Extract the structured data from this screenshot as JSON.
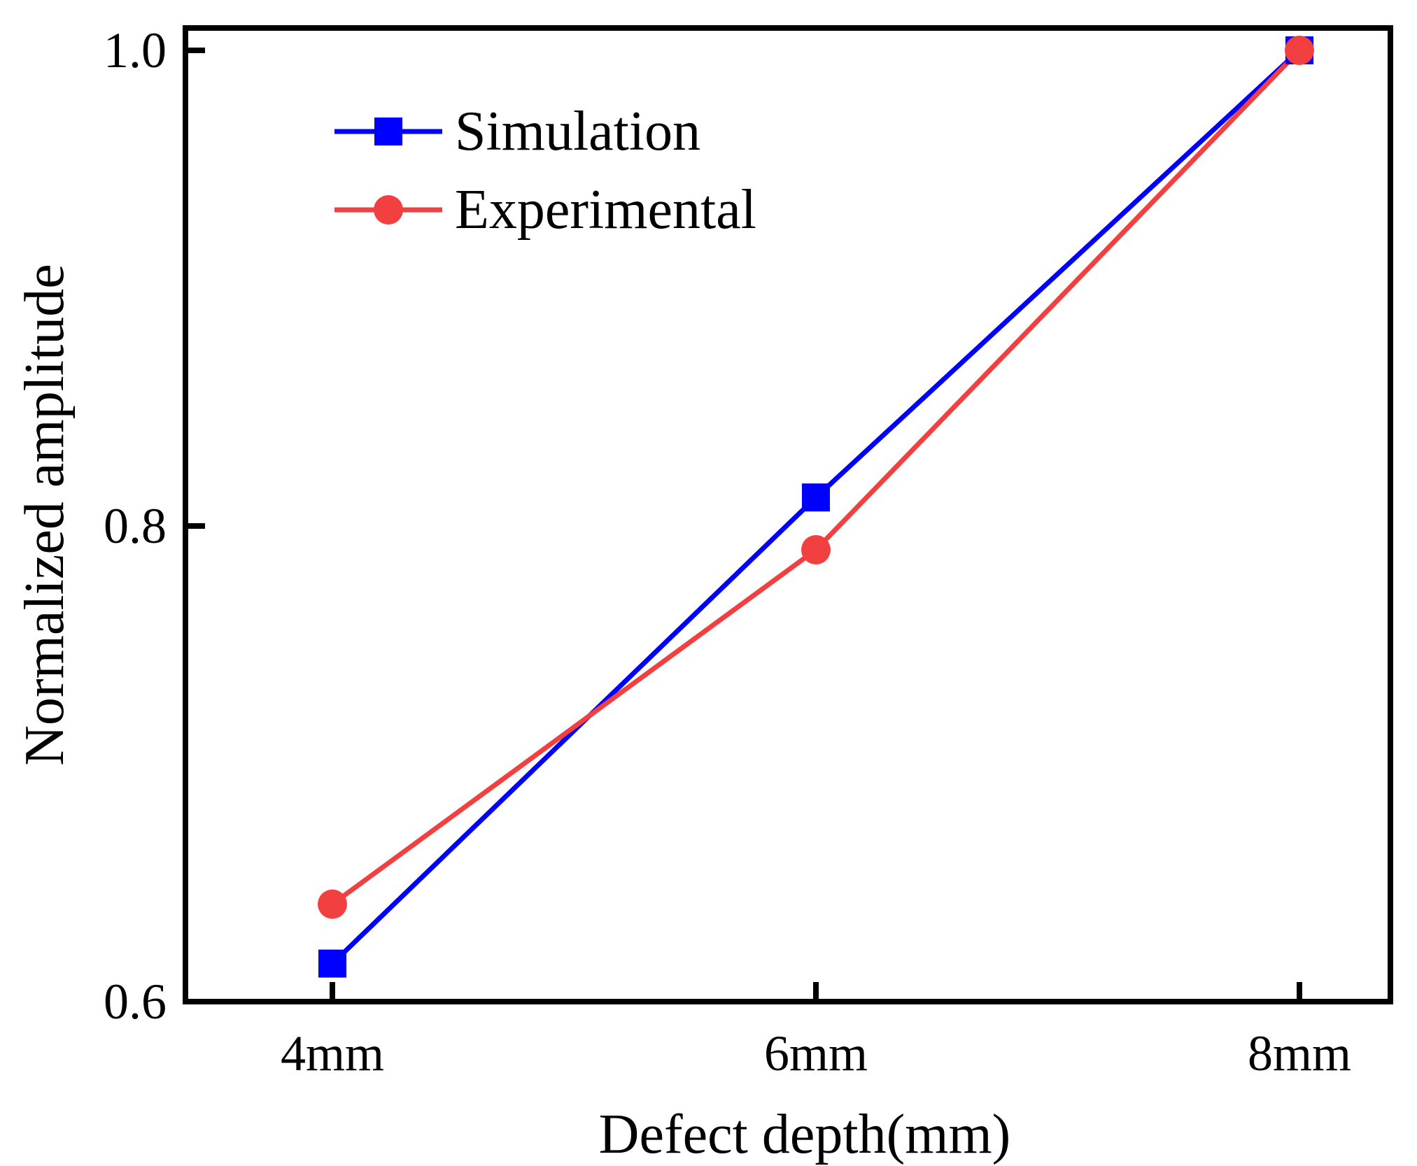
{
  "chart_data": {
    "type": "line",
    "title": "",
    "xlabel": "Defect depth(mm)",
    "ylabel": "Normalized amplitude",
    "categories": [
      "4mm",
      "6mm",
      "8mm"
    ],
    "ylim": [
      0.6,
      1.0
    ],
    "yticks": [
      "0.6",
      "0.8",
      "1.0"
    ],
    "grid": false,
    "legend_position": "top-left",
    "series": [
      {
        "name": "Simulation",
        "color": "#0000ff",
        "marker": "square",
        "values": [
          0.616,
          0.812,
          1.0
        ]
      },
      {
        "name": "Experimental",
        "color": "#f24040",
        "marker": "circle",
        "values": [
          0.641,
          0.79,
          1.0
        ]
      }
    ]
  }
}
